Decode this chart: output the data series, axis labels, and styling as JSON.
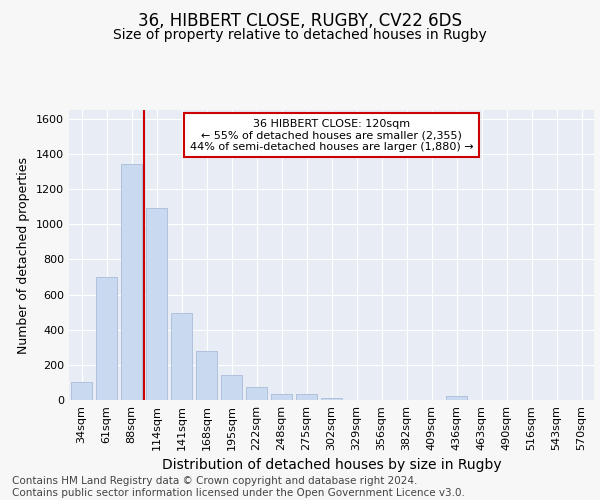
{
  "title_line1": "36, HIBBERT CLOSE, RUGBY, CV22 6DS",
  "title_line2": "Size of property relative to detached houses in Rugby",
  "xlabel": "Distribution of detached houses by size in Rugby",
  "ylabel": "Number of detached properties",
  "categories": [
    "34sqm",
    "61sqm",
    "88sqm",
    "114sqm",
    "141sqm",
    "168sqm",
    "195sqm",
    "222sqm",
    "248sqm",
    "275sqm",
    "302sqm",
    "329sqm",
    "356sqm",
    "382sqm",
    "409sqm",
    "436sqm",
    "463sqm",
    "490sqm",
    "516sqm",
    "543sqm",
    "570sqm"
  ],
  "values": [
    100,
    700,
    1340,
    1090,
    495,
    280,
    140,
    75,
    35,
    35,
    10,
    0,
    0,
    0,
    0,
    20,
    0,
    0,
    0,
    0,
    0
  ],
  "bar_color": "#c9d9ef",
  "bar_edge_color": "#aabcd8",
  "vline_x_index": 2,
  "vline_color": "#cc0000",
  "annotation_text": "36 HIBBERT CLOSE: 120sqm\n← 55% of detached houses are smaller (2,355)\n44% of semi-detached houses are larger (1,880) →",
  "annotation_box_facecolor": "#ffffff",
  "annotation_box_edgecolor": "#cc0000",
  "ylim": [
    0,
    1650
  ],
  "yticks": [
    0,
    200,
    400,
    600,
    800,
    1000,
    1200,
    1400,
    1600
  ],
  "footer_text": "Contains HM Land Registry data © Crown copyright and database right 2024.\nContains public sector information licensed under the Open Government Licence v3.0.",
  "fig_bg_color": "#f7f7f7",
  "plot_bg_color": "#e8edf5",
  "grid_color": "#ffffff",
  "title_fontsize": 12,
  "subtitle_fontsize": 10,
  "xlabel_fontsize": 10,
  "ylabel_fontsize": 9,
  "tick_fontsize": 8,
  "annotation_fontsize": 8,
  "footer_fontsize": 7.5
}
